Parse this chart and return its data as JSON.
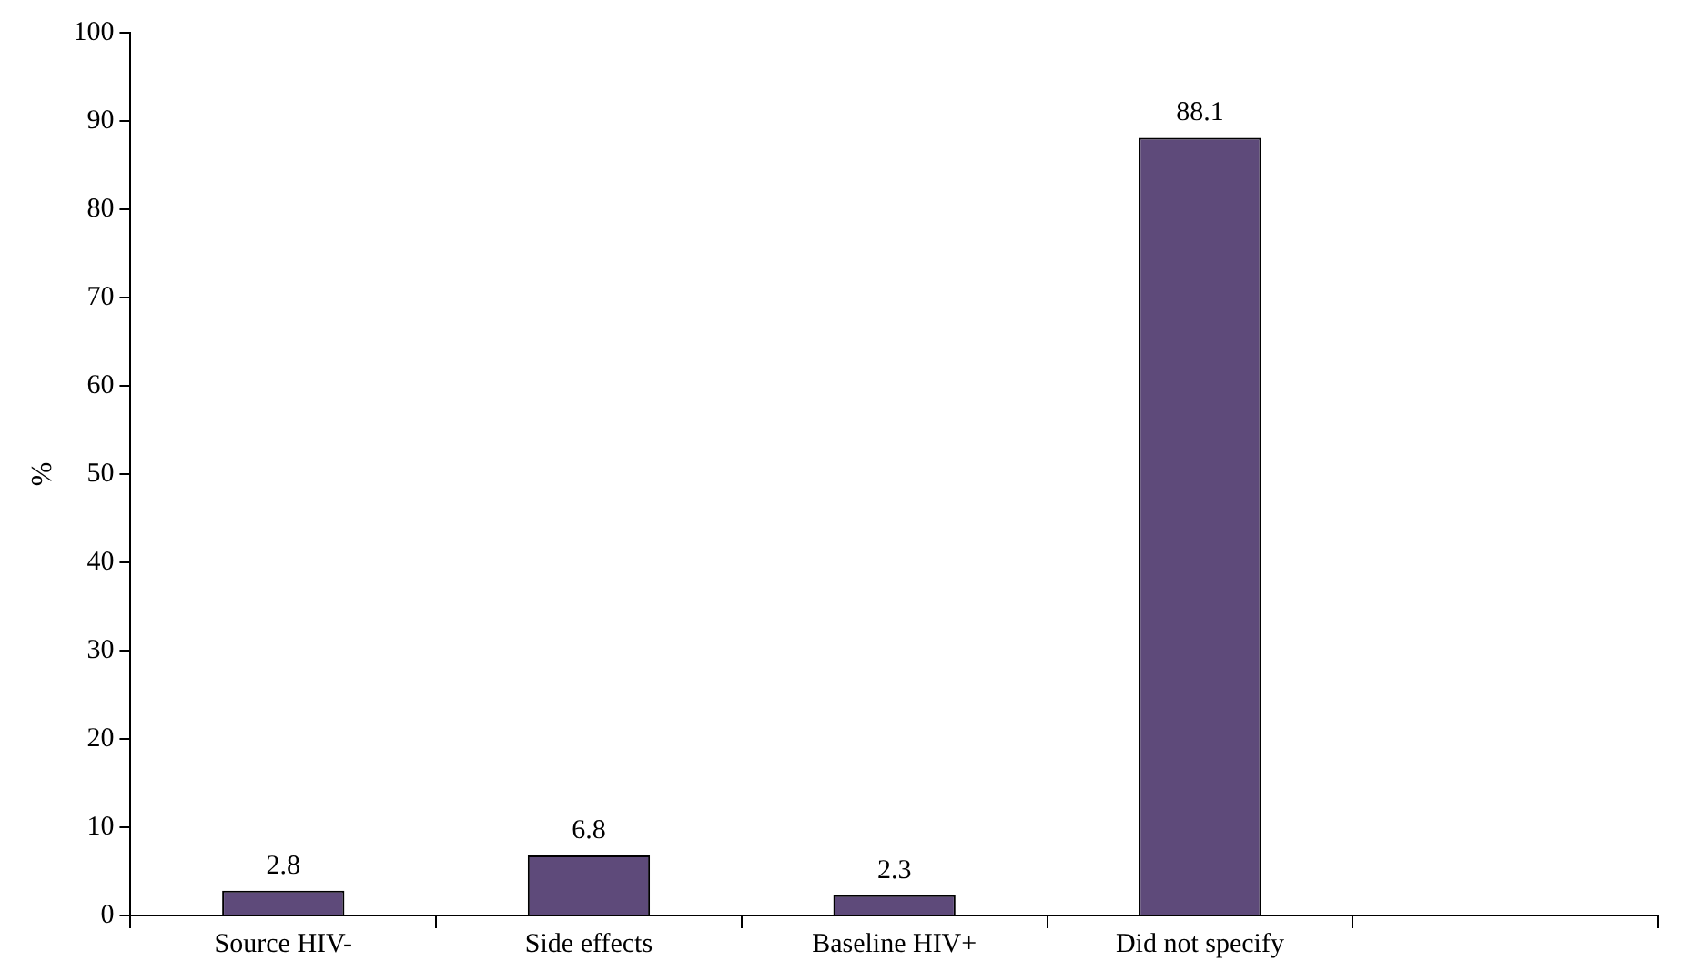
{
  "chart_data": {
    "type": "bar",
    "ylabel": "%",
    "categories": [
      "Source HIV-",
      "Side effects",
      "Baseline HIV+",
      "Did not specify",
      null
    ],
    "values": [
      2.8,
      6.8,
      2.3,
      88.1,
      null
    ],
    "color": "#5e4a7a",
    "ylim": [
      0,
      100
    ],
    "yticks": [
      0,
      10,
      20,
      30,
      40,
      50,
      60,
      70,
      80,
      90,
      100
    ],
    "grid": false,
    "legend": false,
    "data_labels": true
  }
}
